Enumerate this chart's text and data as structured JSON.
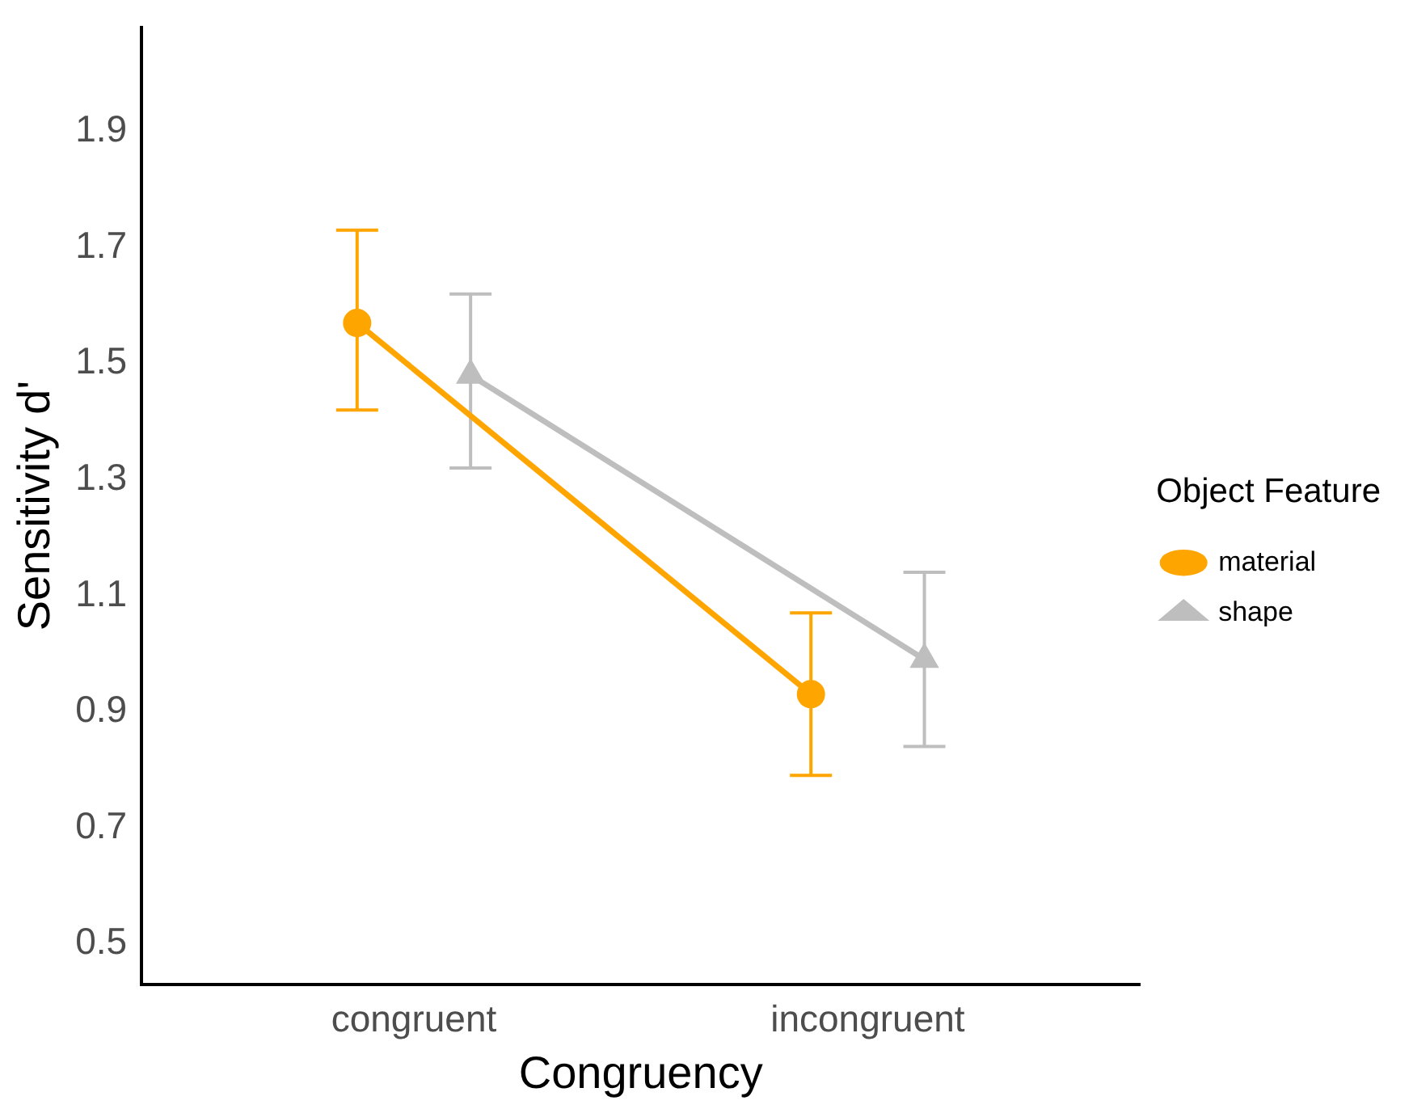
{
  "chart_data": {
    "type": "line",
    "xlabel": "Congruency",
    "ylabel": "Sensitivity d'",
    "legend_title": "Object Feature",
    "legend": "right",
    "grid": false,
    "categories": [
      "congruent",
      "incongruent"
    ],
    "ylim": [
      0.43,
      2.08
    ],
    "yticks": [
      {
        "value": 0.5,
        "label": "0.5"
      },
      {
        "value": 0.7,
        "label": "0.7"
      },
      {
        "value": 0.9,
        "label": "0.9"
      },
      {
        "value": 1.1,
        "label": "1.1"
      },
      {
        "value": 1.3,
        "label": "1.3"
      },
      {
        "value": 1.5,
        "label": "1.5"
      },
      {
        "value": 1.7,
        "label": "1.7"
      },
      {
        "value": 1.9,
        "label": "1.9"
      }
    ],
    "series": [
      {
        "name": "material",
        "color": "#ffa500",
        "marker": "circle",
        "values": [
          1.57,
          0.93
        ],
        "errors": [
          [
            1.42,
            1.73
          ],
          [
            0.79,
            1.07
          ]
        ]
      },
      {
        "name": "shape",
        "color": "#bebebe",
        "marker": "triangle",
        "values": [
          1.48,
          0.99
        ],
        "errors": [
          [
            1.32,
            1.62
          ],
          [
            0.84,
            1.14
          ]
        ]
      }
    ]
  }
}
